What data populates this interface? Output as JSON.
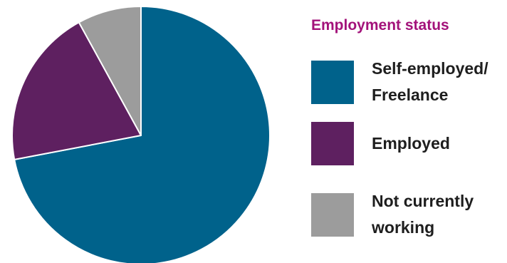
{
  "chart_data": {
    "type": "pie",
    "title": "Employment status",
    "slices": [
      {
        "label": "Self-employed/ Freelance",
        "value": 72,
        "color": "#00628b"
      },
      {
        "label": "Employed",
        "value": 20,
        "color": "#5e2060"
      },
      {
        "label": "Not currently working",
        "value": 8,
        "color": "#9c9c9c"
      }
    ],
    "legend": "right"
  }
}
